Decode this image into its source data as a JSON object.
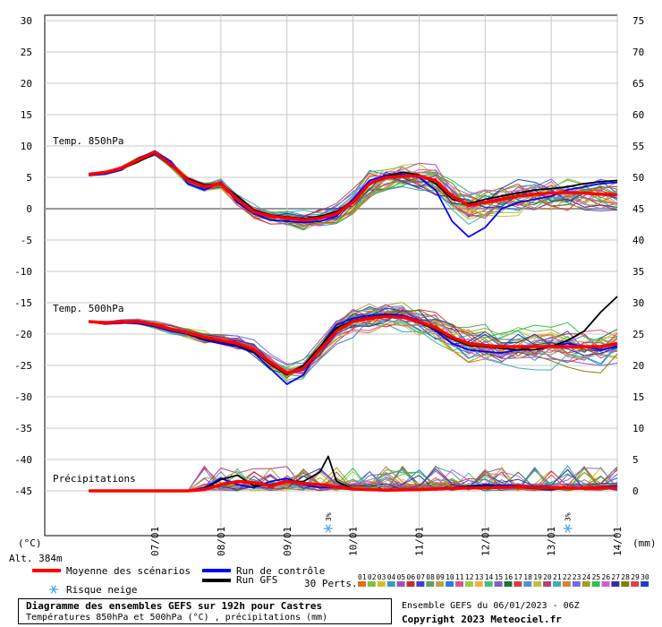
{
  "chart_data": {
    "type": "line",
    "title": "Diagramme des ensembles GEFS sur 192h pour Castres",
    "subtitle": "Températures 850hPa et 500hPa (°C) , précipitations (mm)",
    "run_info": "Ensemble GEFS du 06/01/2023 - 06Z",
    "copyright": "Copyright 2023 Meteociel.fr",
    "left_axis_unit": "(°C)",
    "right_axis_unit": "(mm)",
    "altitude": "Alt. 384m",
    "left_ticks": [
      30,
      25,
      20,
      15,
      10,
      5,
      0,
      -5,
      -10,
      -15,
      -20,
      -25,
      -30,
      -35,
      -40,
      -45
    ],
    "right_ticks": [
      75,
      70,
      65,
      60,
      55,
      50,
      45,
      40,
      35,
      30,
      25,
      20,
      15,
      10,
      5,
      0
    ],
    "ylim": [
      -45,
      30
    ],
    "x_labels": [
      "07/01",
      "08/01",
      "09/01",
      "10/01",
      "11/01",
      "12/01",
      "13/01",
      "14/01"
    ],
    "x_hours": [
      24,
      48,
      72,
      96,
      120,
      144,
      168,
      192
    ],
    "labels": {
      "t850": "Temp. 850hPa",
      "t500": "Temp. 500hPa",
      "precip": "Précipitations"
    },
    "snow_risk": [
      {
        "hour": 87,
        "label": "3%"
      },
      {
        "hour": 174,
        "label": "3%"
      }
    ],
    "series": [
      {
        "name": "Moyenne des scénarios",
        "color": "#ff0000",
        "key": "t850_mean",
        "x": [
          0,
          6,
          12,
          18,
          24,
          30,
          36,
          42,
          48,
          54,
          60,
          66,
          72,
          78,
          84,
          90,
          96,
          102,
          108,
          114,
          120,
          126,
          132,
          138,
          144,
          150,
          156,
          162,
          168,
          174,
          180,
          186,
          192
        ],
        "y": [
          5.5,
          5.8,
          6.5,
          7.8,
          9.0,
          7.0,
          4.5,
          3.5,
          4.0,
          1.5,
          -0.5,
          -1.2,
          -1.5,
          -1.8,
          -1.5,
          -0.8,
          1.0,
          4.0,
          5.0,
          5.2,
          5.2,
          4.5,
          2.0,
          0.5,
          1.0,
          1.5,
          2.0,
          2.3,
          2.5,
          2.6,
          2.5,
          2.3,
          2.2
        ]
      },
      {
        "name": "Run de contrôle",
        "color": "#0000ff",
        "key": "t850_ctrl",
        "x": [
          0,
          6,
          12,
          18,
          24,
          30,
          36,
          42,
          48,
          54,
          60,
          66,
          72,
          78,
          84,
          90,
          96,
          102,
          108,
          114,
          120,
          126,
          132,
          138,
          144,
          150,
          156,
          162,
          168,
          174,
          180,
          186,
          192
        ],
        "y": [
          5.3,
          5.5,
          6.2,
          8.0,
          9.2,
          7.5,
          4.0,
          3.0,
          4.2,
          1.0,
          -0.8,
          -1.8,
          -2.0,
          -2.2,
          -2.0,
          -1.2,
          1.5,
          4.5,
          5.3,
          5.5,
          5.0,
          3.0,
          -2.0,
          -4.5,
          -3.0,
          0.0,
          1.0,
          1.5,
          2.0,
          3.0,
          3.5,
          4.0,
          4.2
        ]
      },
      {
        "name": "Run GFS",
        "color": "#000000",
        "key": "t850_gfs",
        "x": [
          0,
          6,
          12,
          18,
          24,
          30,
          36,
          42,
          48,
          54,
          60,
          66,
          72,
          78,
          84,
          90,
          96,
          102,
          108,
          114,
          120,
          126,
          132,
          138,
          144,
          150,
          156,
          162,
          168,
          174,
          180,
          186,
          192
        ],
        "y": [
          5.4,
          5.7,
          6.4,
          7.5,
          8.8,
          6.8,
          4.8,
          3.8,
          4.0,
          2.0,
          -0.2,
          -1.0,
          -1.3,
          -1.6,
          -1.2,
          -0.5,
          1.2,
          3.8,
          5.2,
          5.8,
          5.4,
          4.0,
          1.5,
          0.8,
          1.5,
          2.0,
          2.5,
          3.0,
          3.2,
          3.5,
          4.0,
          4.3,
          4.5
        ]
      },
      {
        "name": "Moyenne des scénarios",
        "color": "#ff0000",
        "key": "t500_mean",
        "x": [
          0,
          6,
          12,
          18,
          24,
          30,
          36,
          42,
          48,
          54,
          60,
          66,
          72,
          78,
          84,
          90,
          96,
          102,
          108,
          114,
          120,
          126,
          132,
          138,
          144,
          150,
          156,
          162,
          168,
          174,
          180,
          186,
          192
        ],
        "y": [
          -18.0,
          -18.2,
          -18.0,
          -18.0,
          -18.5,
          -19.2,
          -19.8,
          -20.5,
          -21.0,
          -21.5,
          -22.5,
          -24.5,
          -26.2,
          -25.5,
          -22.5,
          -19.5,
          -18.0,
          -17.5,
          -17.2,
          -17.3,
          -18.0,
          -19.0,
          -20.5,
          -21.5,
          -21.8,
          -22.0,
          -22.0,
          -22.0,
          -22.0,
          -22.0,
          -22.0,
          -22.0,
          -21.5
        ]
      },
      {
        "name": "Run de contrôle",
        "color": "#0000ff",
        "key": "t500_ctrl",
        "x": [
          0,
          6,
          12,
          18,
          24,
          30,
          36,
          42,
          48,
          54,
          60,
          66,
          72,
          78,
          84,
          90,
          96,
          102,
          108,
          114,
          120,
          126,
          132,
          138,
          144,
          150,
          156,
          162,
          168,
          174,
          180,
          186,
          192
        ],
        "y": [
          -18.0,
          -18.4,
          -18.2,
          -18.3,
          -18.8,
          -19.5,
          -20.0,
          -21.0,
          -21.5,
          -22.0,
          -23.0,
          -25.5,
          -28.0,
          -26.5,
          -22.0,
          -18.5,
          -17.5,
          -17.0,
          -16.8,
          -17.0,
          -17.8,
          -19.5,
          -21.5,
          -22.5,
          -22.8,
          -23.0,
          -22.5,
          -22.0,
          -22.0,
          -21.5,
          -22.0,
          -22.5,
          -22.0
        ]
      },
      {
        "name": "Run GFS",
        "color": "#000000",
        "key": "t500_gfs",
        "x": [
          0,
          6,
          12,
          18,
          24,
          30,
          36,
          42,
          48,
          54,
          60,
          66,
          72,
          78,
          84,
          90,
          96,
          102,
          108,
          114,
          120,
          126,
          132,
          138,
          144,
          150,
          156,
          162,
          168,
          174,
          180,
          186,
          192
        ],
        "y": [
          -18.0,
          -18.1,
          -17.9,
          -18.1,
          -18.6,
          -19.3,
          -20.0,
          -20.8,
          -21.2,
          -21.8,
          -22.8,
          -24.8,
          -26.5,
          -25.0,
          -22.0,
          -19.0,
          -17.8,
          -17.3,
          -17.0,
          -17.2,
          -18.2,
          -19.3,
          -20.8,
          -21.8,
          -22.0,
          -22.3,
          -22.5,
          -22.5,
          -22.0,
          -21.0,
          -19.5,
          -16.5,
          -14.0
        ]
      },
      {
        "name": "Moyenne des scénarios",
        "color": "#ff0000",
        "key": "precip_mean",
        "x": [
          0,
          24,
          36,
          42,
          48,
          54,
          60,
          66,
          72,
          78,
          84,
          90,
          96,
          108,
          120,
          132,
          144,
          156,
          168,
          180,
          192
        ],
        "y": [
          0.0,
          0.0,
          0.0,
          0.2,
          1.0,
          1.5,
          1.3,
          0.8,
          1.5,
          1.2,
          1.0,
          0.6,
          0.3,
          0.1,
          0.2,
          0.4,
          0.5,
          0.6,
          0.5,
          0.4,
          0.5
        ]
      },
      {
        "name": "Run de contrôle",
        "color": "#0000ff",
        "key": "precip_ctrl",
        "x": [
          0,
          24,
          36,
          42,
          48,
          54,
          60,
          66,
          72,
          78,
          84,
          90,
          96,
          108,
          120,
          132,
          144,
          156,
          168,
          180,
          192
        ],
        "y": [
          0.0,
          0.0,
          0.0,
          0.5,
          2.0,
          1.0,
          0.5,
          1.5,
          2.0,
          1.0,
          0.5,
          0.5,
          0.2,
          0.0,
          0.3,
          0.5,
          1.0,
          0.8,
          0.6,
          0.5,
          0.8
        ]
      },
      {
        "name": "Run GFS",
        "color": "#000000",
        "key": "precip_gfs",
        "x": [
          0,
          24,
          36,
          42,
          48,
          54,
          60,
          66,
          72,
          78,
          84,
          87,
          90,
          96,
          108,
          120,
          132,
          144,
          156,
          168,
          180,
          192
        ],
        "y": [
          0.0,
          0.0,
          0.0,
          0.3,
          1.8,
          2.5,
          0.8,
          1.0,
          1.5,
          1.5,
          3.0,
          5.5,
          1.5,
          0.3,
          0.1,
          0.2,
          0.5,
          0.8,
          0.5,
          0.3,
          0.4,
          0.6
        ]
      }
    ],
    "perturbation_legend": {
      "label": "30 Perts.",
      "ids": [
        "01",
        "02",
        "03",
        "04",
        "05",
        "06",
        "07",
        "08",
        "09",
        "10",
        "11",
        "12",
        "13",
        "14",
        "15",
        "16",
        "17",
        "18",
        "19",
        "20",
        "21",
        "22",
        "23",
        "24",
        "25",
        "26",
        "27",
        "28",
        "29",
        "30"
      ],
      "colors": [
        "#e0701f",
        "#7fbf3f",
        "#d0c020",
        "#30a0c0",
        "#a050c0",
        "#c03030",
        "#4040c0",
        "#60a060",
        "#c0a040",
        "#2080e0",
        "#e05090",
        "#90d040",
        "#f0b040",
        "#40c080",
        "#8060c0",
        "#207040",
        "#d04040",
        "#5090d0",
        "#c0c040",
        "#b04080",
        "#40b0b0",
        "#e08030",
        "#7070e0",
        "#a0a020",
        "#30c050",
        "#d060d0",
        "#3030a0",
        "#808000",
        "#e04040",
        "#2040c0"
      ]
    }
  }
}
